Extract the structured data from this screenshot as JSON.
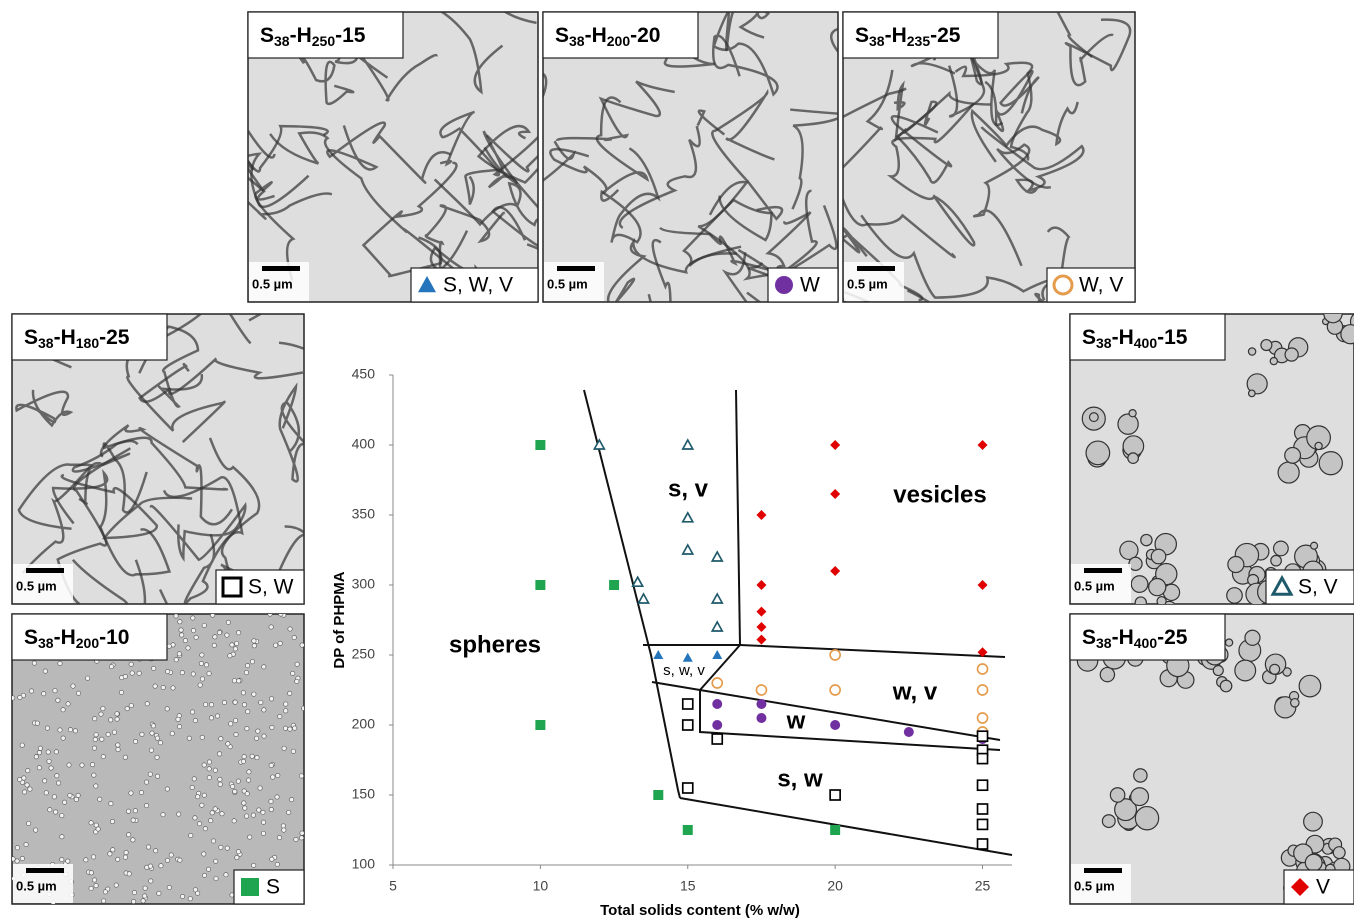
{
  "chart_data": {
    "type": "scatter",
    "xlabel": "Total solids content (% w/w)",
    "ylabel": "DP of PHPMA",
    "xlim": [
      5,
      26
    ],
    "ylim": [
      100,
      450
    ],
    "xticks": [
      5,
      10,
      15,
      20,
      25
    ],
    "yticks": [
      100,
      150,
      200,
      250,
      300,
      350,
      400,
      450
    ],
    "region_labels": [
      "spheres",
      "s, v",
      "vesicles",
      "w, v",
      "w",
      "s, w",
      "s, w, v"
    ],
    "scale_bar": "0.5 µm",
    "series": [
      {
        "name": "S, W, V",
        "marker": "triangle",
        "filled": true,
        "color": "#2475bb",
        "panel_title": [
          "S",
          "38",
          "-H",
          "250",
          "-15"
        ],
        "x": [
          14,
          15,
          16
        ],
        "values": [
          250,
          248,
          250
        ]
      },
      {
        "name": "W",
        "marker": "circle",
        "filled": true,
        "color": "#7030a0",
        "panel_title": [
          "S",
          "38",
          "-H",
          "200",
          "-20"
        ],
        "x": [
          16,
          16,
          17.5,
          17.5,
          20,
          22.5,
          25
        ],
        "values": [
          215,
          200,
          215,
          205,
          200,
          195,
          190
        ]
      },
      {
        "name": "W, V",
        "marker": "circle",
        "filled": false,
        "color": "#e59b4c",
        "panel_title": [
          "S",
          "38",
          "-H",
          "235",
          "-25"
        ],
        "x": [
          16,
          17.5,
          20,
          20,
          25,
          25,
          25,
          25
        ],
        "values": [
          230,
          225,
          250,
          225,
          240,
          225,
          205,
          195
        ]
      },
      {
        "name": "S, W",
        "marker": "square",
        "filled": false,
        "color": "#000000",
        "panel_title": [
          "S",
          "38",
          "-H",
          "180",
          "-25"
        ],
        "x": [
          15,
          15,
          15,
          16,
          20,
          25,
          25,
          25,
          25,
          25,
          25,
          25
        ],
        "values": [
          215,
          200,
          155,
          190,
          150,
          192,
          182,
          176,
          157,
          140,
          129,
          115
        ]
      },
      {
        "name": "S",
        "marker": "square",
        "filled": true,
        "color": "#1fa550",
        "panel_title": [
          "S",
          "38",
          "-H",
          "200",
          "-10"
        ],
        "x": [
          10,
          10,
          10,
          12.5,
          14,
          15,
          20
        ],
        "values": [
          400,
          300,
          200,
          300,
          150,
          125,
          125
        ]
      },
      {
        "name": "S, V",
        "marker": "triangle",
        "filled": false,
        "color": "#1f5a6a",
        "panel_title": [
          "S",
          "38",
          "-H",
          "400",
          "-15"
        ],
        "x": [
          12,
          15,
          13.3,
          13.5,
          15,
          15,
          16,
          16,
          16
        ],
        "values": [
          400,
          400,
          302,
          290,
          348,
          325,
          320,
          290,
          270
        ]
      },
      {
        "name": "V",
        "marker": "diamond",
        "filled": true,
        "color": "#e00000",
        "panel_title": [
          "S",
          "38",
          "-H",
          "400",
          "-25"
        ],
        "x": [
          17.5,
          17.5,
          17.5,
          17.5,
          17.5,
          20,
          20,
          20,
          25,
          25,
          25
        ],
        "values": [
          350,
          300,
          281,
          270,
          261,
          400,
          365,
          310,
          400,
          300,
          252
        ]
      }
    ]
  }
}
